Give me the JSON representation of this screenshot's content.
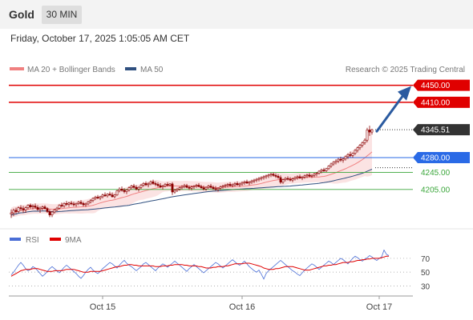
{
  "header": {
    "symbol": "Gold",
    "timeframe": "30 MIN",
    "timestamp": "Friday, October 17, 2025 1:05:05 AM CET"
  },
  "chart_data": {
    "type": "candlestick",
    "legend": [
      {
        "name": "MA 20 + Bollinger Bands",
        "color": "#f08080"
      },
      {
        "name": "MA 50",
        "color": "#2f4f7f"
      }
    ],
    "credit": "Research © 2025 Trading Central",
    "y_range": [
      4120,
      4470
    ],
    "x_labels": [
      {
        "label": "Oct 15",
        "bar": 38
      },
      {
        "label": "Oct 16",
        "bar": 96
      },
      {
        "label": "Oct 17",
        "bar": 153
      }
    ],
    "levels": [
      {
        "value": 4450.0,
        "label": "4450.00",
        "kind": "resistance",
        "color": "#e00000"
      },
      {
        "value": 4410.0,
        "label": "4410.00",
        "kind": "resistance",
        "color": "#e00000"
      },
      {
        "value": 4345.51,
        "label": "4345.51",
        "kind": "last_price",
        "color": "#333333"
      },
      {
        "value": 4280.0,
        "label": "4280.00",
        "kind": "pivot",
        "color": "#2a6ae6"
      },
      {
        "value": 4245.0,
        "label": "4245.00",
        "kind": "support",
        "color": "#3aa63a"
      },
      {
        "value": 4205.0,
        "label": "4205.00",
        "kind": "support",
        "color": "#3aa63a"
      }
    ],
    "ohlc": [
      [
        4147,
        4158,
        4138,
        4150
      ],
      [
        4150,
        4160,
        4142,
        4156
      ],
      [
        4156,
        4162,
        4148,
        4153
      ],
      [
        4153,
        4165,
        4150,
        4162
      ],
      [
        4162,
        4168,
        4155,
        4160
      ],
      [
        4160,
        4166,
        4150,
        4157
      ],
      [
        4157,
        4165,
        4150,
        4162
      ],
      [
        4162,
        4170,
        4158,
        4168
      ],
      [
        4168,
        4172,
        4160,
        4164
      ],
      [
        4164,
        4170,
        4158,
        4166
      ],
      [
        4166,
        4172,
        4160,
        4163
      ],
      [
        4163,
        4168,
        4155,
        4158
      ],
      [
        4158,
        4165,
        4150,
        4161
      ],
      [
        4161,
        4167,
        4156,
        4164
      ],
      [
        4164,
        4168,
        4158,
        4160
      ],
      [
        4160,
        4163,
        4150,
        4153
      ],
      [
        4153,
        4158,
        4140,
        4145
      ],
      [
        4145,
        4155,
        4140,
        4152
      ],
      [
        4152,
        4160,
        4148,
        4157
      ],
      [
        4157,
        4164,
        4154,
        4161
      ],
      [
        4161,
        4170,
        4158,
        4168
      ],
      [
        4168,
        4174,
        4162,
        4166
      ],
      [
        4166,
        4175,
        4162,
        4172
      ],
      [
        4172,
        4178,
        4166,
        4170
      ],
      [
        4170,
        4176,
        4164,
        4173
      ],
      [
        4173,
        4178,
        4168,
        4171
      ],
      [
        4171,
        4176,
        4165,
        4169
      ],
      [
        4169,
        4174,
        4164,
        4172
      ],
      [
        4172,
        4178,
        4168,
        4175
      ],
      [
        4175,
        4180,
        4169,
        4172
      ],
      [
        4172,
        4176,
        4165,
        4169
      ],
      [
        4169,
        4174,
        4164,
        4171
      ],
      [
        4171,
        4178,
        4168,
        4176
      ],
      [
        4176,
        4182,
        4172,
        4179
      ],
      [
        4179,
        4186,
        4175,
        4184
      ],
      [
        4184,
        4190,
        4180,
        4187
      ],
      [
        4187,
        4192,
        4182,
        4185
      ],
      [
        4185,
        4190,
        4180,
        4188
      ],
      [
        4188,
        4195,
        4184,
        4192
      ],
      [
        4192,
        4198,
        4188,
        4190
      ],
      [
        4190,
        4196,
        4186,
        4194
      ],
      [
        4194,
        4200,
        4190,
        4192
      ],
      [
        4192,
        4198,
        4186,
        4188
      ],
      [
        4188,
        4194,
        4184,
        4192
      ],
      [
        4192,
        4204,
        4190,
        4202
      ],
      [
        4202,
        4210,
        4198,
        4206
      ],
      [
        4206,
        4212,
        4200,
        4203
      ],
      [
        4203,
        4208,
        4196,
        4200
      ],
      [
        4200,
        4206,
        4194,
        4204
      ],
      [
        4204,
        4212,
        4200,
        4209
      ],
      [
        4209,
        4216,
        4205,
        4213
      ],
      [
        4213,
        4218,
        4207,
        4210
      ],
      [
        4210,
        4215,
        4203,
        4206
      ],
      [
        4206,
        4212,
        4200,
        4210
      ],
      [
        4210,
        4218,
        4206,
        4215
      ],
      [
        4215,
        4222,
        4211,
        4219
      ],
      [
        4219,
        4224,
        4213,
        4216
      ],
      [
        4216,
        4222,
        4210,
        4218
      ],
      [
        4218,
        4226,
        4215,
        4223
      ],
      [
        4223,
        4228,
        4216,
        4219
      ],
      [
        4219,
        4224,
        4213,
        4217
      ],
      [
        4217,
        4222,
        4211,
        4214
      ],
      [
        4214,
        4220,
        4208,
        4211
      ],
      [
        4211,
        4216,
        4205,
        4213
      ],
      [
        4213,
        4220,
        4210,
        4217
      ],
      [
        4217,
        4222,
        4212,
        4215
      ],
      [
        4215,
        4220,
        4212,
        4218
      ],
      [
        4218,
        4222,
        4192,
        4199
      ],
      [
        4199,
        4206,
        4195,
        4203
      ],
      [
        4203,
        4209,
        4199,
        4206
      ],
      [
        4206,
        4212,
        4202,
        4209
      ],
      [
        4209,
        4215,
        4205,
        4212
      ],
      [
        4212,
        4218,
        4208,
        4214
      ],
      [
        4214,
        4218,
        4208,
        4210
      ],
      [
        4210,
        4214,
        4204,
        4208
      ],
      [
        4208,
        4214,
        4203,
        4211
      ],
      [
        4211,
        4215,
        4206,
        4213
      ],
      [
        4213,
        4218,
        4209,
        4215
      ],
      [
        4215,
        4220,
        4210,
        4212
      ],
      [
        4212,
        4216,
        4206,
        4209
      ],
      [
        4209,
        4214,
        4203,
        4206
      ],
      [
        4206,
        4212,
        4202,
        4210
      ],
      [
        4210,
        4216,
        4206,
        4213
      ],
      [
        4213,
        4218,
        4207,
        4210
      ],
      [
        4210,
        4214,
        4204,
        4207
      ],
      [
        4207,
        4213,
        4202,
        4205
      ],
      [
        4205,
        4210,
        4200,
        4208
      ],
      [
        4208,
        4214,
        4204,
        4211
      ],
      [
        4211,
        4216,
        4207,
        4213
      ],
      [
        4213,
        4218,
        4209,
        4215
      ],
      [
        4215,
        4220,
        4210,
        4217
      ],
      [
        4217,
        4222,
        4212,
        4214
      ],
      [
        4214,
        4219,
        4210,
        4216
      ],
      [
        4216,
        4222,
        4212,
        4219
      ],
      [
        4219,
        4224,
        4214,
        4216
      ],
      [
        4216,
        4221,
        4211,
        4218
      ],
      [
        4218,
        4224,
        4214,
        4221
      ],
      [
        4221,
        4226,
        4216,
        4223
      ],
      [
        4223,
        4228,
        4218,
        4220
      ],
      [
        4220,
        4225,
        4215,
        4222
      ],
      [
        4222,
        4228,
        4218,
        4225
      ],
      [
        4225,
        4230,
        4220,
        4227
      ],
      [
        4227,
        4232,
        4222,
        4229
      ],
      [
        4229,
        4234,
        4224,
        4231
      ],
      [
        4231,
        4236,
        4226,
        4233
      ],
      [
        4233,
        4238,
        4228,
        4235
      ],
      [
        4235,
        4240,
        4230,
        4237
      ],
      [
        4237,
        4242,
        4232,
        4239
      ],
      [
        4239,
        4244,
        4234,
        4241
      ],
      [
        4241,
        4245,
        4235,
        4238
      ],
      [
        4238,
        4243,
        4232,
        4236
      ],
      [
        4236,
        4241,
        4230,
        4233
      ],
      [
        4233,
        4238,
        4218,
        4222
      ],
      [
        4222,
        4230,
        4218,
        4228
      ],
      [
        4228,
        4234,
        4224,
        4231
      ],
      [
        4231,
        4236,
        4226,
        4229
      ],
      [
        4229,
        4234,
        4224,
        4227
      ],
      [
        4227,
        4233,
        4222,
        4230
      ],
      [
        4230,
        4236,
        4226,
        4233
      ],
      [
        4233,
        4238,
        4228,
        4235
      ],
      [
        4235,
        4240,
        4230,
        4232
      ],
      [
        4232,
        4237,
        4227,
        4234
      ],
      [
        4234,
        4240,
        4230,
        4237
      ],
      [
        4237,
        4242,
        4232,
        4239
      ],
      [
        4239,
        4244,
        4234,
        4236
      ],
      [
        4236,
        4241,
        4232,
        4238
      ],
      [
        4238,
        4244,
        4234,
        4241
      ],
      [
        4241,
        4246,
        4236,
        4243
      ],
      [
        4243,
        4250,
        4240,
        4248
      ],
      [
        4248,
        4254,
        4243,
        4251
      ],
      [
        4251,
        4256,
        4246,
        4249
      ],
      [
        4249,
        4256,
        4246,
        4254
      ],
      [
        4254,
        4262,
        4251,
        4260
      ],
      [
        4260,
        4268,
        4256,
        4265
      ],
      [
        4265,
        4272,
        4261,
        4269
      ],
      [
        4269,
        4276,
        4264,
        4272
      ],
      [
        4272,
        4279,
        4267,
        4276
      ],
      [
        4276,
        4282,
        4270,
        4274
      ],
      [
        4274,
        4280,
        4268,
        4277
      ],
      [
        4277,
        4285,
        4273,
        4282
      ],
      [
        4282,
        4290,
        4277,
        4287
      ],
      [
        4287,
        4294,
        4281,
        4285
      ],
      [
        4285,
        4292,
        4280,
        4290
      ],
      [
        4290,
        4300,
        4286,
        4297
      ],
      [
        4297,
        4306,
        4292,
        4303
      ],
      [
        4303,
        4312,
        4298,
        4309
      ],
      [
        4309,
        4318,
        4304,
        4315
      ],
      [
        4315,
        4325,
        4310,
        4321
      ],
      [
        4321,
        4350,
        4316,
        4345
      ],
      [
        4345,
        4355,
        4331,
        4340
      ],
      [
        4340,
        4348,
        4334,
        4345.51
      ]
    ],
    "rsi": {
      "legend": [
        {
          "name": "RSI",
          "color": "#4a6ed6"
        },
        {
          "name": "9MA",
          "color": "#e00000"
        }
      ],
      "y_range": [
        20,
        85
      ],
      "ticks": [
        70,
        50,
        30
      ],
      "values": [
        46,
        50,
        55,
        60,
        64,
        60,
        55,
        52,
        54,
        58,
        56,
        52,
        48,
        44,
        47,
        51,
        55,
        58,
        55,
        52,
        49,
        53,
        57,
        60,
        57,
        54,
        51,
        48,
        44,
        41,
        45,
        50,
        54,
        57,
        53,
        50,
        48,
        51,
        55,
        58,
        61,
        64,
        62,
        59,
        56,
        60,
        64,
        67,
        63,
        60,
        58,
        55,
        52,
        55,
        58,
        62,
        64,
        61,
        58,
        55,
        52,
        56,
        59,
        62,
        60,
        57,
        60,
        63,
        66,
        63,
        60,
        57,
        54,
        51,
        55,
        58,
        61,
        58,
        55,
        52,
        49,
        52,
        55,
        58,
        61,
        64,
        62,
        59,
        56,
        59,
        62,
        65,
        68,
        65,
        62,
        60,
        63,
        66,
        62,
        58,
        55,
        52,
        50,
        53,
        47,
        40,
        48,
        52,
        55,
        58,
        61,
        64,
        67,
        64,
        61,
        58,
        55,
        52,
        50,
        47,
        45,
        49,
        53,
        56,
        59,
        62,
        60,
        57,
        54,
        57,
        60,
        63,
        66,
        64,
        61,
        64,
        67,
        70,
        68,
        65,
        62,
        66,
        70,
        73,
        71,
        68,
        66,
        69,
        71,
        74,
        72,
        69,
        67,
        70,
        72,
        82,
        76,
        74
      ],
      "ma9": [
        44,
        46,
        48,
        50,
        52,
        53,
        54,
        54,
        54,
        55,
        55,
        55,
        54,
        53,
        52,
        51,
        51,
        51,
        52,
        52,
        52,
        52,
        53,
        54,
        54,
        54,
        54,
        53,
        52,
        51,
        50,
        50,
        50,
        51,
        51,
        51,
        51,
        51,
        52,
        53,
        54,
        55,
        56,
        57,
        58,
        58,
        59,
        60,
        60,
        61,
        61,
        60,
        60,
        59,
        59,
        59,
        59,
        59,
        59,
        59,
        58,
        58,
        58,
        59,
        59,
        59,
        60,
        60,
        61,
        61,
        61,
        61,
        60,
        60,
        59,
        59,
        59,
        59,
        58,
        58,
        57,
        56,
        56,
        56,
        57,
        57,
        58,
        58,
        58,
        59,
        59,
        60,
        61,
        62,
        62,
        62,
        62,
        63,
        63,
        63,
        62,
        61,
        60,
        59,
        58,
        56,
        55,
        54,
        54,
        54,
        55,
        55,
        56,
        57,
        58,
        58,
        58,
        58,
        57,
        56,
        55,
        54,
        53,
        53,
        53,
        54,
        55,
        56,
        57,
        58,
        59,
        59,
        60,
        60,
        61,
        61,
        62,
        63,
        64,
        64,
        64,
        65,
        65,
        66,
        67,
        67,
        68,
        68,
        69,
        69,
        70,
        70,
        70,
        70,
        71,
        72,
        73,
        73
      ]
    }
  }
}
